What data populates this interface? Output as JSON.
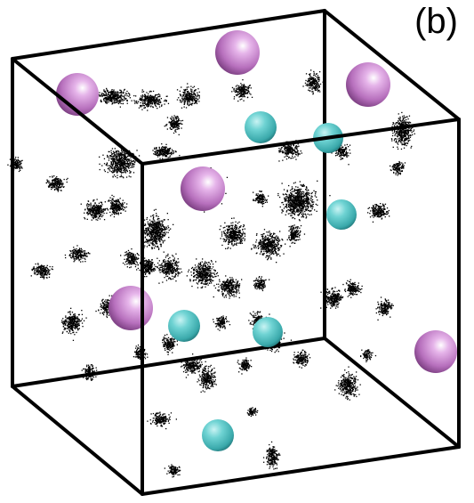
{
  "panel_label": "(b)",
  "colors": {
    "edge": "#000000",
    "large_sphere": "#c27ec9",
    "small_sphere": "#4fc4c4",
    "cloud": "#000000"
  }
}
